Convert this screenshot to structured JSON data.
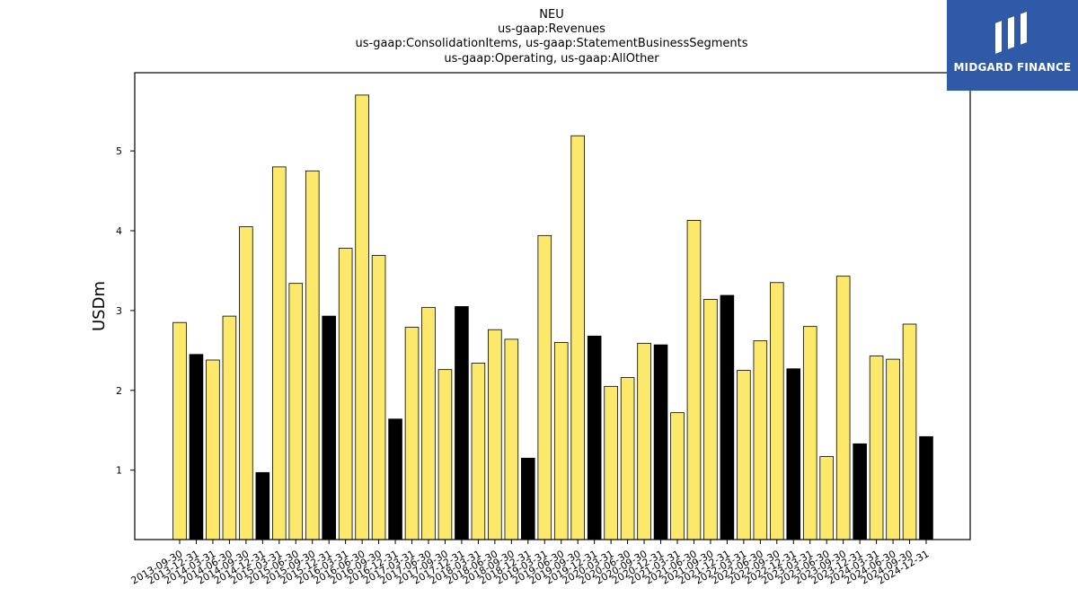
{
  "brand": {
    "name": "MIDGARD FINANCE",
    "bg_color": "#2f5aa8",
    "icon": "midgard-logo-icon"
  },
  "chart_data": {
    "type": "bar",
    "title": [
      "NEU",
      "us-gaap:Revenues",
      "us-gaap:ConsolidationItems, us-gaap:StatementBusinessSegments",
      "us-gaap:Operating, us-gaap:AllOther"
    ],
    "xlabel": "",
    "ylabel": "USDm",
    "ylim": [
      0.13,
      5.98
    ],
    "yticks": [
      1,
      2,
      3,
      4,
      5
    ],
    "grid": false,
    "colors": {
      "quarter": "#fce96b",
      "year_end": "#000000",
      "edge": "#000000"
    },
    "categories": [
      "2013-09-30",
      "2013-12-31",
      "2014-03-31",
      "2014-06-30",
      "2014-09-30",
      "2014-12-31",
      "2015-03-31",
      "2015-06-30",
      "2015-09-30",
      "2015-12-31",
      "2016-03-31",
      "2016-06-30",
      "2016-09-30",
      "2016-12-31",
      "2017-03-31",
      "2017-06-30",
      "2017-09-30",
      "2017-12-31",
      "2018-03-31",
      "2018-06-30",
      "2018-09-30",
      "2018-12-31",
      "2019-03-31",
      "2019-06-30",
      "2019-09-30",
      "2019-12-31",
      "2020-03-31",
      "2020-06-30",
      "2020-09-30",
      "2020-12-31",
      "2021-03-31",
      "2021-06-30",
      "2021-09-30",
      "2021-12-31",
      "2022-03-31",
      "2022-06-30",
      "2022-09-30",
      "2022-12-31",
      "2023-03-31",
      "2023-06-30",
      "2023-09-30",
      "2023-12-31",
      "2024-03-31",
      "2024-06-30",
      "2024-09-30",
      "2024-12-31"
    ],
    "values": [
      2.85,
      2.45,
      2.38,
      2.93,
      4.05,
      0.97,
      4.8,
      3.34,
      4.75,
      2.93,
      3.78,
      5.7,
      3.69,
      1.64,
      2.79,
      3.04,
      2.26,
      3.05,
      2.34,
      2.76,
      2.64,
      1.15,
      3.94,
      2.6,
      5.19,
      2.68,
      2.05,
      2.16,
      2.59,
      2.57,
      1.72,
      4.13,
      3.14,
      3.19,
      2.25,
      2.62,
      3.35,
      2.27,
      2.8,
      1.17,
      3.43,
      1.33,
      2.43,
      2.39,
      2.83,
      1.42
    ],
    "highlight": [
      false,
      true,
      false,
      false,
      false,
      true,
      false,
      false,
      false,
      true,
      false,
      false,
      false,
      true,
      false,
      false,
      false,
      true,
      false,
      false,
      false,
      true,
      false,
      false,
      false,
      true,
      false,
      false,
      false,
      true,
      false,
      false,
      false,
      true,
      false,
      false,
      false,
      true,
      false,
      false,
      false,
      true,
      false,
      false,
      false,
      true
    ]
  }
}
